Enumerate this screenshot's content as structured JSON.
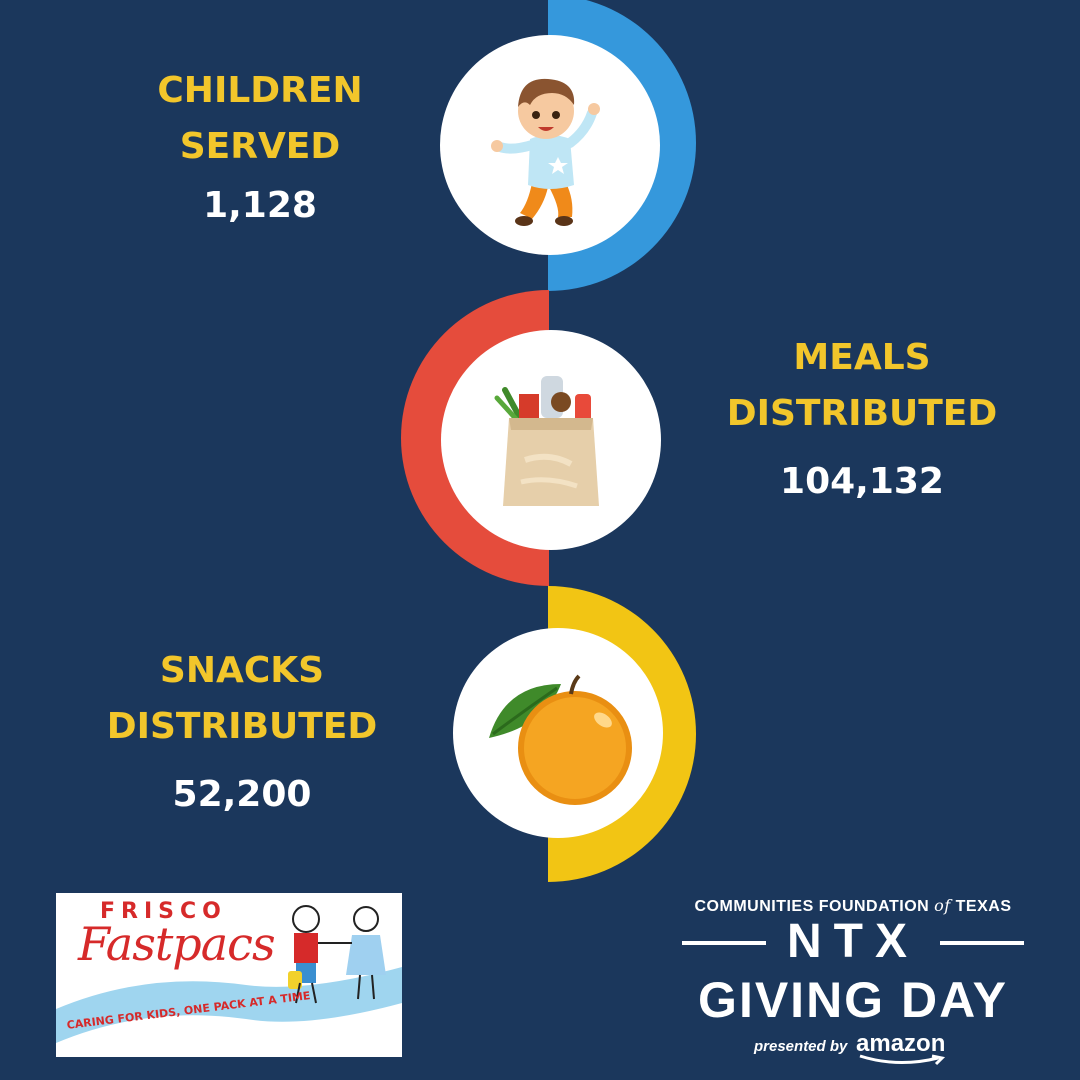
{
  "stats": [
    {
      "label": "CHILDREN\nSERVED",
      "value": "1,128",
      "icon": "jumping-child-icon",
      "arc_color": "#3598dc"
    },
    {
      "label": "MEALS\nDISTRIBUTED",
      "value": "104,132",
      "icon": "grocery-bag-icon",
      "arc_color": "#e54c3c"
    },
    {
      "label": "SNACKS\nDISTRIBUTED",
      "value": "52,200",
      "icon": "orange-icon",
      "arc_color": "#f2c514"
    }
  ],
  "frisco_logo": {
    "line1": "FRISCO",
    "line2": "Fastpacs",
    "tagline": "CARING FOR KIDS, ONE PACK AT A TIME"
  },
  "sponsor": {
    "org_prefix": "COMMUNITIES FOUNDATION ",
    "org_of": "of",
    "org_suffix": " TEXAS",
    "ntx": "NTX",
    "giving_day": "GIVING DAY",
    "presented_by": "presented by",
    "amazon": "amazon"
  },
  "colors": {
    "background": "#1b375c",
    "label": "#f2c62b",
    "value": "#ffffff"
  }
}
